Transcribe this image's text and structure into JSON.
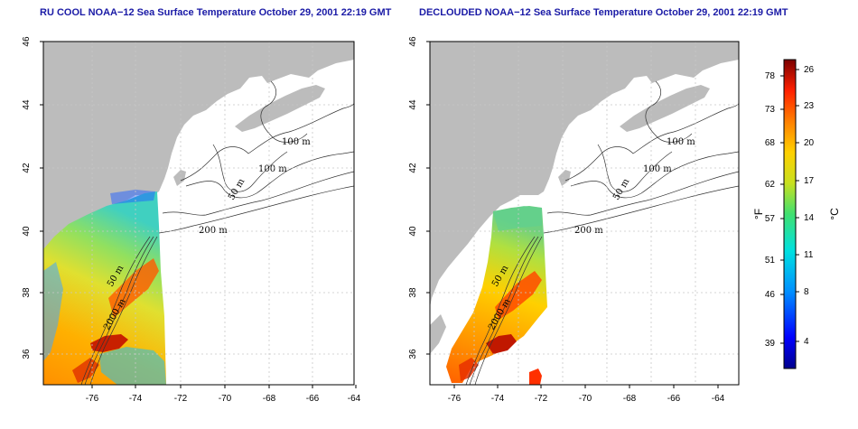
{
  "panels": [
    {
      "title": "RU COOL NOAA−12 Sea Surface Temperature October 29, 2001 22:19 GMT",
      "y_ticks": [
        "36",
        "38",
        "40",
        "42",
        "44",
        "46"
      ],
      "x_ticks": [
        "-76",
        "-74",
        "-72",
        "-70",
        "-68",
        "-66",
        "-64"
      ],
      "contour_labels": [
        "100 m",
        "100 m",
        "50 m",
        "200 m",
        "50 m",
        "2000 m"
      ]
    },
    {
      "title": "DECLOUDED NOAA−12 Sea Surface Temperature October 29, 2001 22:19 GMT",
      "y_ticks": [
        "36",
        "38",
        "40",
        "42",
        "44",
        "46"
      ],
      "x_ticks": [
        "-76",
        "-74",
        "-72",
        "-70",
        "-68",
        "-66",
        "-64"
      ],
      "contour_labels": [
        "100 m",
        "100 m",
        "50 m",
        "200 m",
        "50 m",
        "2000 m"
      ]
    }
  ],
  "colorbar": {
    "fahrenheit_ticks": [
      "78",
      "73",
      "68",
      "62",
      "57",
      "51",
      "46",
      "39"
    ],
    "celsius_ticks": [
      "26",
      "23",
      "20",
      "17",
      "14",
      "11",
      "8",
      "4"
    ],
    "fahrenheit_unit": "°F",
    "celsius_unit": "°C"
  }
}
